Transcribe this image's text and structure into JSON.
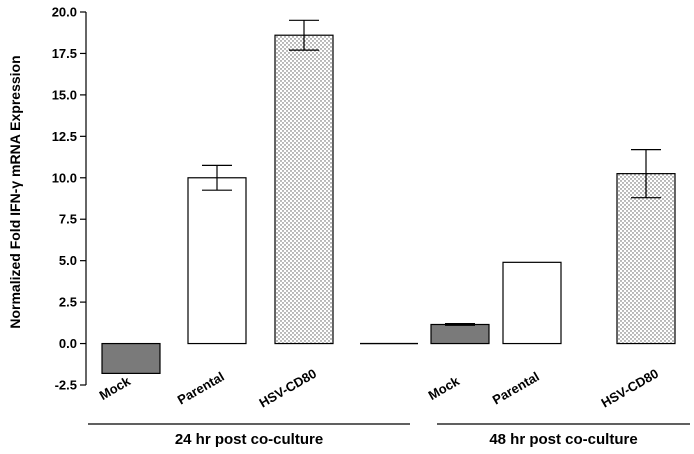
{
  "chart_data": {
    "type": "bar",
    "ylabel": "Normalized Fold IFN-γ mRNA Expression",
    "ylim": [
      -2.5,
      20.0
    ],
    "yticks": [
      "-2.5",
      "0.0",
      "2.5",
      "5.0",
      "7.5",
      "10.0",
      "12.5",
      "15.0",
      "17.5",
      "20.0"
    ],
    "grid": false,
    "groups": [
      {
        "label": "24 hr post co-culture",
        "bars": [
          {
            "category": "Mock",
            "value": -1.8,
            "error": 0.0,
            "pattern": "dark"
          },
          {
            "category": "Parental",
            "value": 10.0,
            "error": 0.75,
            "pattern": "white"
          },
          {
            "category": "HSV-CD80",
            "value": 18.6,
            "error": 0.9,
            "pattern": "dotted"
          }
        ]
      },
      {
        "label": "48 hr post co-culture",
        "bars": [
          {
            "category": "Mock",
            "value": 1.15,
            "error": 0.05,
            "pattern": "dark"
          },
          {
            "category": "Parental",
            "value": 4.9,
            "error": 0.0,
            "pattern": "white"
          },
          {
            "category": "HSV-CD80",
            "value": 10.25,
            "error": 1.45,
            "pattern": "dotted"
          }
        ]
      }
    ],
    "colors": {
      "dark": "#7a7a7a",
      "white": "#ffffff",
      "dot": "#555555",
      "stroke": "#000000"
    }
  }
}
